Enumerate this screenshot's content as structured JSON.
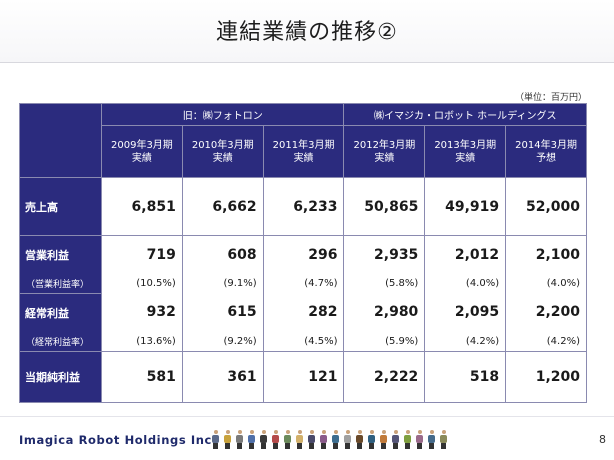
{
  "title": "連結業績の推移②",
  "unit_note": "（単位：百万円）",
  "table": {
    "group_headers": [
      "旧：㈱フォトロン",
      "㈱イマジカ・ロボット ホールディングス"
    ],
    "periods": [
      {
        "year": "2009年3月期",
        "type": "実績"
      },
      {
        "year": "2010年3月期",
        "type": "実績"
      },
      {
        "year": "2011年3月期",
        "type": "実績"
      },
      {
        "year": "2012年3月期",
        "type": "実績"
      },
      {
        "year": "2013年3月期",
        "type": "実績"
      },
      {
        "year": "2014年3月期",
        "type": "予想"
      }
    ],
    "sales": {
      "label": "売上高",
      "values": [
        "6,851",
        "6,662",
        "6,233",
        "50,865",
        "49,919",
        "52,000"
      ]
    },
    "operating": {
      "label": "営業利益",
      "values": [
        "719",
        "608",
        "296",
        "2,935",
        "2,012",
        "2,100"
      ],
      "rate_label": "（営業利益率）",
      "rates": [
        "(10.5%)",
        "(9.1%)",
        "(4.7%)",
        "(5.8%)",
        "(4.0%)",
        "(4.0%)"
      ]
    },
    "ordinary": {
      "label": "経常利益",
      "values": [
        "932",
        "615",
        "282",
        "2,980",
        "2,095",
        "2,200"
      ],
      "rate_label": "（経常利益率）",
      "rates": [
        "(13.6%)",
        "(9.2%)",
        "(4.5%)",
        "(5.9%)",
        "(4.2%)",
        "(4.2%)"
      ]
    },
    "net": {
      "label": "当期純利益",
      "values": [
        "581",
        "361",
        "121",
        "2,222",
        "518",
        "1,200"
      ]
    }
  },
  "footer": {
    "brand": "Imagica Robot Holdings Inc.",
    "page_number": "8",
    "people_colors": [
      "#5b6a8a",
      "#c8a23c",
      "#7a7a7a",
      "#4f6fa8",
      "#3a3a3a",
      "#b54a4a",
      "#6b8a5b",
      "#d2b06a",
      "#4a4a6a",
      "#8a5b8a",
      "#3d6d8f",
      "#a0a0a0",
      "#6a4a2a",
      "#2f5f7f",
      "#c07a3a",
      "#555577",
      "#7f9f3f",
      "#9a6a8a",
      "#456a8a",
      "#8a8a5a"
    ]
  }
}
